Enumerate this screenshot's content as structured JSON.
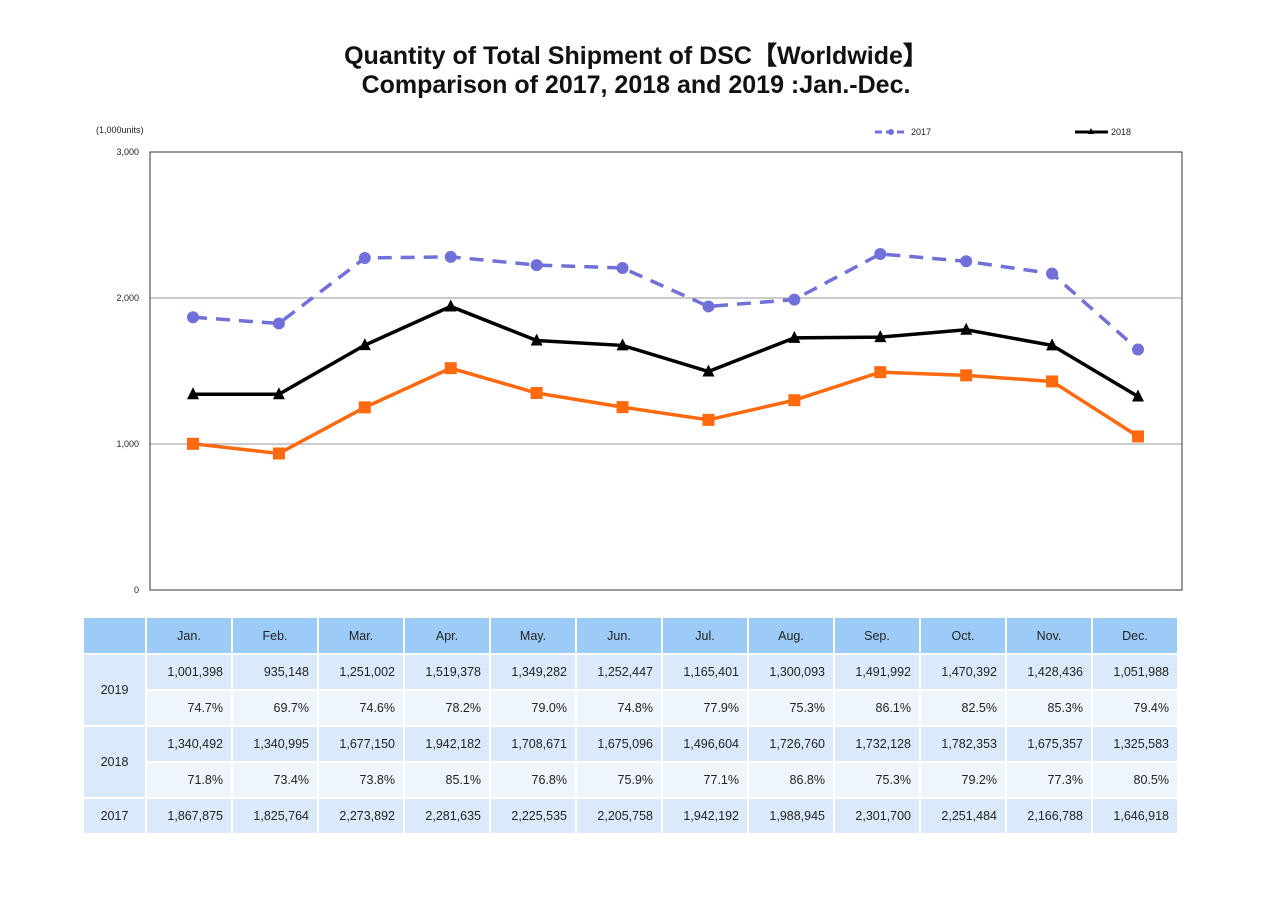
{
  "title_line1": "Quantity of Total Shipment of DSC【Worldwide】",
  "title_line2": "Comparison of 2017, 2018 and 2019 :Jan.-Dec.",
  "chart_data": {
    "type": "line",
    "ylabel": "(1,000units)",
    "ylim": [
      0,
      3000
    ],
    "yticks": [
      "0",
      "1,000",
      "2,000",
      "3,000"
    ],
    "grid": true,
    "legend": "top-right",
    "categories": [
      "Jan.",
      "Feb.",
      "Mar.",
      "Apr.",
      "May.",
      "Jun.",
      "Jul.",
      "Aug.",
      "Sep.",
      "Oct.",
      "Nov.",
      "Dec."
    ],
    "series": [
      {
        "name": "2017",
        "color": "#7070d8",
        "style": "dashed",
        "marker": "circle",
        "values": [
          1867.875,
          1825.764,
          2273.892,
          2281.635,
          2225.535,
          2205.758,
          1942.192,
          1988.945,
          2301.7,
          2251.484,
          2166.788,
          1646.918
        ]
      },
      {
        "name": "2018",
        "color": "#000000",
        "style": "solid",
        "marker": "triangle",
        "values": [
          1340.492,
          1340.995,
          1677.15,
          1942.182,
          1708.671,
          1675.096,
          1496.604,
          1726.76,
          1732.128,
          1782.353,
          1675.357,
          1325.583
        ]
      },
      {
        "name": "2019",
        "color": "#ff6a10",
        "style": "solid",
        "marker": "square",
        "values": [
          1001.398,
          935.148,
          1251.002,
          1519.378,
          1349.282,
          1252.447,
          1165.401,
          1300.093,
          1491.992,
          1470.392,
          1428.436,
          1051.988
        ]
      }
    ]
  },
  "table": {
    "headers": [
      "Jan.",
      "Feb.",
      "Mar.",
      "Apr.",
      "May.",
      "Jun.",
      "Jul.",
      "Aug.",
      "Sep.",
      "Oct.",
      "Nov.",
      "Dec."
    ],
    "rows": [
      {
        "year": "2019",
        "values": [
          "1,001,398",
          "935,148",
          "1,251,002",
          "1,519,378",
          "1,349,282",
          "1,252,447",
          "1,165,401",
          "1,300,093",
          "1,491,992",
          "1,470,392",
          "1,428,436",
          "1,051,988"
        ],
        "pct": [
          "74.7%",
          "69.7%",
          "74.6%",
          "78.2%",
          "79.0%",
          "74.8%",
          "77.9%",
          "75.3%",
          "86.1%",
          "82.5%",
          "85.3%",
          "79.4%"
        ]
      },
      {
        "year": "2018",
        "values": [
          "1,340,492",
          "1,340,995",
          "1,677,150",
          "1,942,182",
          "1,708,671",
          "1,675,096",
          "1,496,604",
          "1,726,760",
          "1,732,128",
          "1,782,353",
          "1,675,357",
          "1,325,583"
        ],
        "pct": [
          "71.8%",
          "73.4%",
          "73.8%",
          "85.1%",
          "76.8%",
          "75.9%",
          "77.1%",
          "86.8%",
          "75.3%",
          "79.2%",
          "77.3%",
          "80.5%"
        ]
      },
      {
        "year": "2017",
        "values": [
          "1,867,875",
          "1,825,764",
          "2,273,892",
          "2,281,635",
          "2,225,535",
          "2,205,758",
          "1,942,192",
          "1,988,945",
          "2,301,700",
          "2,251,484",
          "2,166,788",
          "1,646,918"
        ]
      }
    ]
  }
}
